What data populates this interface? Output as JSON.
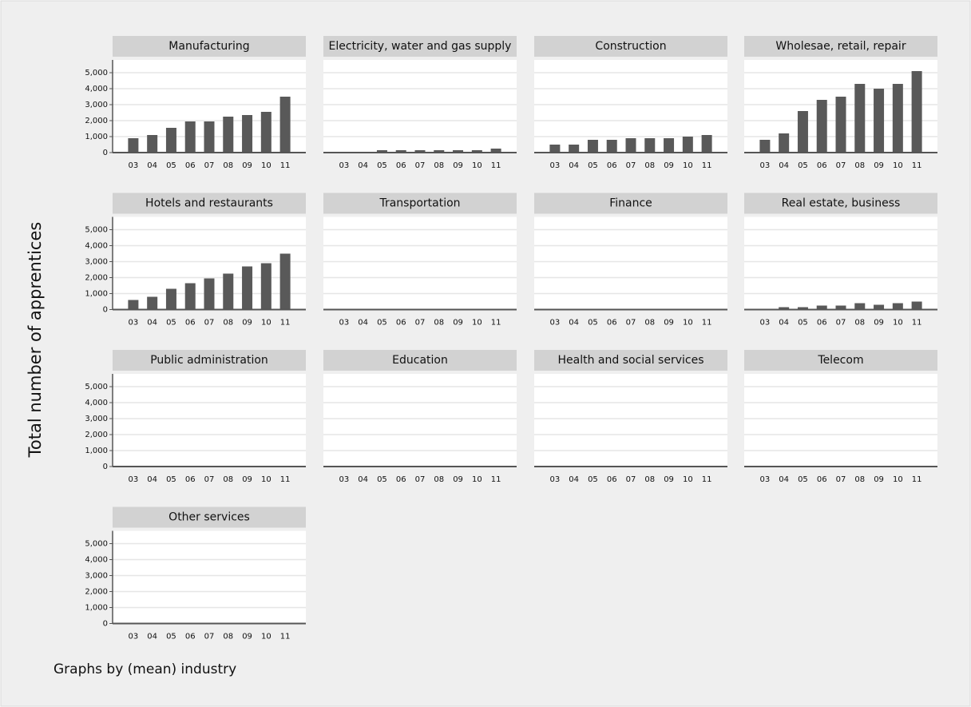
{
  "y_label": "Total number of apprentices",
  "note": "Graphs by (mean) industry",
  "chart_data": [
    {
      "type": "bar",
      "title": "Manufacturing",
      "categories": [
        "03",
        "04",
        "05",
        "06",
        "07",
        "08",
        "09",
        "10",
        "11"
      ],
      "values": [
        900,
        1100,
        1550,
        1950,
        1950,
        2250,
        2350,
        2550,
        3500
      ],
      "color": "#595959",
      "ylim": [
        0,
        5800
      ],
      "yticks": [
        0,
        {
          "value": 1000,
          "label": "1,000"
        },
        {
          "value": 2000,
          "label": "2,000"
        },
        {
          "value": 3000,
          "label": "3,000"
        },
        {
          "value": 4000,
          "label": "4,000"
        },
        {
          "value": 5000,
          "label": "5,000"
        }
      ],
      "grid": true
    },
    {
      "type": "bar",
      "title": "Electricity, water and gas supply",
      "categories": [
        "03",
        "04",
        "05",
        "06",
        "07",
        "08",
        "09",
        "10",
        "11"
      ],
      "values": [
        50,
        50,
        150,
        150,
        150,
        150,
        150,
        150,
        250
      ],
      "color": "#595959",
      "ylim": [
        0,
        5800
      ],
      "yticks": [
        0,
        1000,
        2000,
        3000,
        4000,
        5000
      ],
      "grid": true
    },
    {
      "type": "bar",
      "title": "Construction",
      "categories": [
        "03",
        "04",
        "05",
        "06",
        "07",
        "08",
        "09",
        "10",
        "11"
      ],
      "values": [
        500,
        500,
        800,
        800,
        900,
        900,
        900,
        1000,
        1100
      ],
      "color": "#595959",
      "ylim": [
        0,
        5800
      ],
      "yticks": [
        0,
        1000,
        2000,
        3000,
        4000,
        5000
      ],
      "grid": true
    },
    {
      "type": "bar",
      "title": "Wholesae, retail, repair",
      "categories": [
        "03",
        "04",
        "05",
        "06",
        "07",
        "08",
        "09",
        "10",
        "11"
      ],
      "values": [
        800,
        1200,
        2600,
        3300,
        3500,
        4300,
        4000,
        4300,
        5100
      ],
      "color": "#595959",
      "ylim": [
        0,
        5800
      ],
      "yticks": [
        0,
        1000,
        2000,
        3000,
        4000,
        5000
      ],
      "grid": true
    },
    {
      "type": "bar",
      "title": "Hotels and restaurants",
      "categories": [
        "03",
        "04",
        "05",
        "06",
        "07",
        "08",
        "09",
        "10",
        "11"
      ],
      "values": [
        600,
        800,
        1300,
        1650,
        1950,
        2250,
        2700,
        2900,
        3500
      ],
      "color": "#595959",
      "ylim": [
        0,
        5800
      ],
      "yticks": [
        0,
        {
          "value": 1000,
          "label": "1,000"
        },
        {
          "value": 2000,
          "label": "2,000"
        },
        {
          "value": 3000,
          "label": "3,000"
        },
        {
          "value": 4000,
          "label": "4,000"
        },
        {
          "value": 5000,
          "label": "5,000"
        }
      ],
      "grid": true
    },
    {
      "type": "bar",
      "title": "Transportation",
      "categories": [
        "03",
        "04",
        "05",
        "06",
        "07",
        "08",
        "09",
        "10",
        "11"
      ],
      "values": [
        0,
        0,
        0,
        0,
        0,
        20,
        20,
        0,
        0
      ],
      "color": "#595959",
      "ylim": [
        0,
        5800
      ],
      "yticks": [
        0,
        1000,
        2000,
        3000,
        4000,
        5000
      ],
      "grid": true
    },
    {
      "type": "bar",
      "title": "Finance",
      "categories": [
        "03",
        "04",
        "05",
        "06",
        "07",
        "08",
        "09",
        "10",
        "11"
      ],
      "values": [
        0,
        0,
        0,
        0,
        0,
        0,
        0,
        0,
        0
      ],
      "color": "#595959",
      "ylim": [
        0,
        5800
      ],
      "yticks": [
        0,
        1000,
        2000,
        3000,
        4000,
        5000
      ],
      "grid": true
    },
    {
      "type": "bar",
      "title": "Real estate, business",
      "categories": [
        "03",
        "04",
        "05",
        "06",
        "07",
        "08",
        "09",
        "10",
        "11"
      ],
      "values": [
        50,
        150,
        150,
        250,
        250,
        400,
        300,
        400,
        500
      ],
      "color": "#595959",
      "ylim": [
        0,
        5800
      ],
      "yticks": [
        0,
        1000,
        2000,
        3000,
        4000,
        5000
      ],
      "grid": true
    },
    {
      "type": "bar",
      "title": "Public administration",
      "categories": [
        "03",
        "04",
        "05",
        "06",
        "07",
        "08",
        "09",
        "10",
        "11"
      ],
      "values": [
        0,
        0,
        0,
        0,
        0,
        0,
        0,
        0,
        0
      ],
      "color": "#595959",
      "ylim": [
        0,
        5800
      ],
      "yticks": [
        0,
        {
          "value": 1000,
          "label": "1,000"
        },
        {
          "value": 2000,
          "label": "2,000"
        },
        {
          "value": 3000,
          "label": "3,000"
        },
        {
          "value": 4000,
          "label": "4,000"
        },
        {
          "value": 5000,
          "label": "5,000"
        }
      ],
      "grid": true
    },
    {
      "type": "bar",
      "title": "Education",
      "categories": [
        "03",
        "04",
        "05",
        "06",
        "07",
        "08",
        "09",
        "10",
        "11"
      ],
      "values": [
        0,
        0,
        0,
        0,
        0,
        0,
        0,
        0,
        0
      ],
      "color": "#595959",
      "ylim": [
        0,
        5800
      ],
      "yticks": [
        0,
        1000,
        2000,
        3000,
        4000,
        5000
      ],
      "grid": true
    },
    {
      "type": "bar",
      "title": "Health and social services",
      "categories": [
        "03",
        "04",
        "05",
        "06",
        "07",
        "08",
        "09",
        "10",
        "11"
      ],
      "values": [
        0,
        0,
        0,
        0,
        0,
        0,
        0,
        0,
        0
      ],
      "color": "#595959",
      "ylim": [
        0,
        5800
      ],
      "yticks": [
        0,
        1000,
        2000,
        3000,
        4000,
        5000
      ],
      "grid": true
    },
    {
      "type": "bar",
      "title": "Telecom",
      "categories": [
        "03",
        "04",
        "05",
        "06",
        "07",
        "08",
        "09",
        "10",
        "11"
      ],
      "values": [
        0,
        0,
        0,
        0,
        0,
        0,
        0,
        0,
        0
      ],
      "color": "#595959",
      "ylim": [
        0,
        5800
      ],
      "yticks": [
        0,
        1000,
        2000,
        3000,
        4000,
        5000
      ],
      "grid": true
    },
    {
      "type": "bar",
      "title": "Other services",
      "categories": [
        "03",
        "04",
        "05",
        "06",
        "07",
        "08",
        "09",
        "10",
        "11"
      ],
      "values": [
        0,
        0,
        0,
        0,
        30,
        30,
        30,
        30,
        30
      ],
      "color": "#595959",
      "ylim": [
        0,
        5800
      ],
      "yticks": [
        0,
        {
          "value": 1000,
          "label": "1,000"
        },
        {
          "value": 2000,
          "label": "2,000"
        },
        {
          "value": 3000,
          "label": "3,000"
        },
        {
          "value": 4000,
          "label": "4,000"
        },
        {
          "value": 5000,
          "label": "5,000"
        }
      ],
      "grid": true
    }
  ]
}
